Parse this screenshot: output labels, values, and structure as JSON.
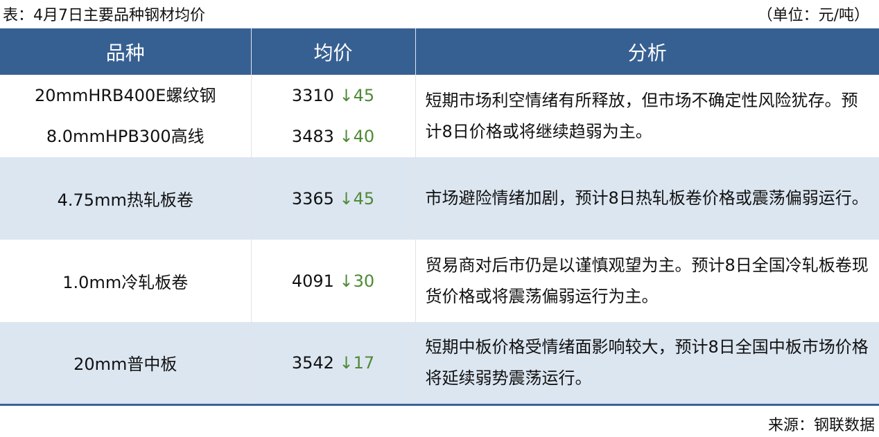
{
  "title": "表：4月7日主要品种钢材均价",
  "unit": "（单位：元/吨）",
  "headers": [
    "品种",
    "均价",
    "分析"
  ],
  "colors": {
    "header_bg": "#376092",
    "alt_row": "#dce6f1",
    "down": "#4e8a35"
  },
  "rows": [
    {
      "items": [
        {
          "name": "20mmHRB400E螺纹钢",
          "price": "3310",
          "change": "↓45"
        },
        {
          "name": "8.0mmHPB300高线",
          "price": "3483",
          "change": "↓40"
        }
      ],
      "analysis": "短期市场利空情绪有所释放，但市场不确定性风险犹存。预计8日价格或将继续趋弱为主。"
    },
    {
      "items": [
        {
          "name": "4.75mm热轧板卷",
          "price": "3365",
          "change": "↓45"
        }
      ],
      "analysis": "市场避险情绪加剧，预计8日热轧板卷价格或震荡偏弱运行。"
    },
    {
      "items": [
        {
          "name": "1.0mm冷轧板卷",
          "price": "4091",
          "change": "↓30"
        }
      ],
      "analysis": "贸易商对后市仍是以谨慎观望为主。预计8日全国冷轧板卷现货价格或将震荡偏弱运行为主。"
    },
    {
      "items": [
        {
          "name": "20mm普中板",
          "price": "3542",
          "change": "↓17"
        }
      ],
      "analysis": "短期中板价格受情绪面影响较大，预计8日全国中板市场价格将延续弱势震荡运行。"
    }
  ],
  "source": "来源：钢联数据"
}
